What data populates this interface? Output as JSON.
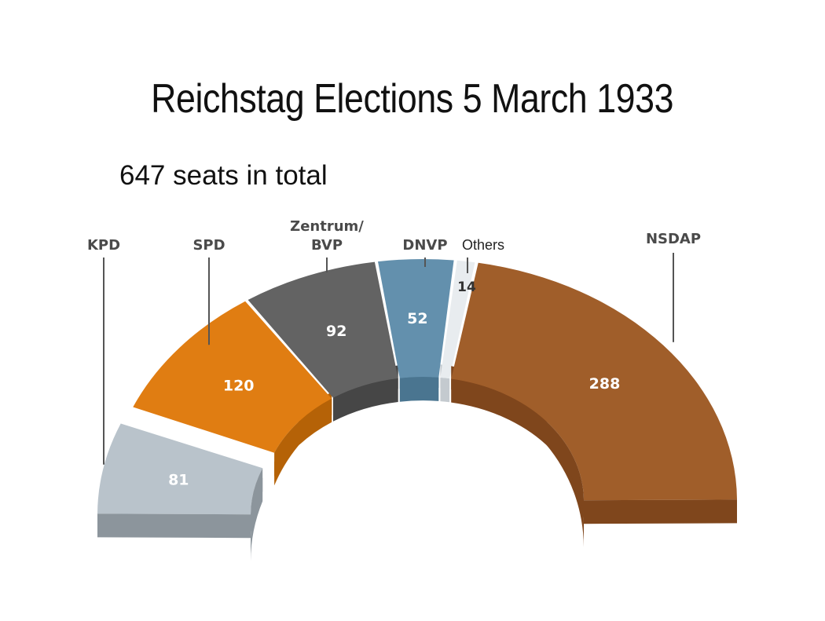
{
  "title": "Reichstag Elections 5 March 1933",
  "subtitle": "647 seats in total",
  "chart_data": {
    "type": "pie",
    "variant": "parliament-semicircle",
    "total": 647,
    "parties": [
      {
        "name": "KPD",
        "seats": 81,
        "color": "#b9c3cb",
        "dark": "#8c959c"
      },
      {
        "name": "SPD",
        "seats": 120,
        "color": "#e07d12",
        "dark": "#b56207"
      },
      {
        "name": "Zentrum/\nBVP",
        "seats": 92,
        "color": "#636363",
        "dark": "#464646"
      },
      {
        "name": "DNVP",
        "seats": 52,
        "color": "#6390ad",
        "dark": "#4a7590"
      },
      {
        "name": "Others",
        "seats": 14,
        "color": "#e8ecef",
        "dark": "#c4cacf"
      },
      {
        "name": "NSDAP",
        "seats": 288,
        "color": "#a05e2a",
        "dark": "#7f461c"
      }
    ]
  }
}
